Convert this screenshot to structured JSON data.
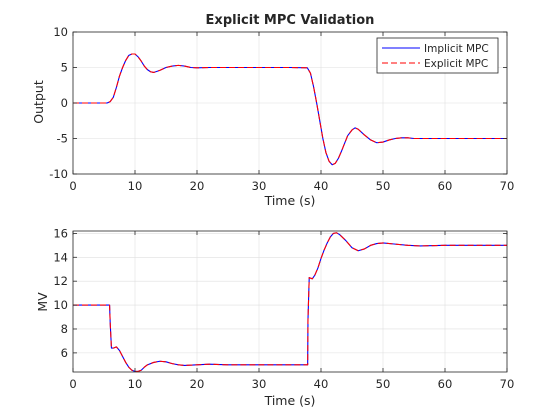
{
  "figure": {
    "background": "#ffffff",
    "axis_color": "#262626",
    "grid_color": "#dfdfdf"
  },
  "chart_data": [
    {
      "type": "line",
      "title": "Explicit MPC Validation",
      "xlabel": "Time (s)",
      "ylabel": "Output",
      "xlim": [
        0,
        70
      ],
      "ylim": [
        -10,
        10
      ],
      "xticks": [
        0,
        10,
        20,
        30,
        40,
        50,
        60,
        70
      ],
      "yticks": [
        -10,
        -5,
        0,
        5,
        10
      ],
      "xtick_labels": [
        "0",
        "10",
        "20",
        "30",
        "40",
        "50",
        "60",
        "70"
      ],
      "ytick_labels": [
        "-10",
        "-5",
        "0",
        "5",
        "10"
      ],
      "grid": true,
      "legend": "top-right",
      "series": [
        {
          "name": "Implicit MPC",
          "color": "#0000ff",
          "style": "solid",
          "x": [
            0,
            5.5,
            6,
            6.5,
            7,
            7.5,
            8,
            8.5,
            9,
            9.5,
            10,
            10.5,
            11,
            11.5,
            12,
            12.5,
            13,
            14,
            15,
            16,
            17,
            18,
            19,
            20,
            22,
            25,
            30,
            35,
            37.8,
            38.3,
            38.8,
            39.3,
            39.8,
            40.3,
            40.8,
            41.3,
            41.8,
            42.3,
            42.8,
            43.3,
            43.8,
            44.3,
            45,
            45.5,
            46,
            47,
            48,
            49,
            50,
            51,
            52,
            53,
            54,
            55,
            57,
            60,
            65,
            70
          ],
          "y": [
            0,
            0,
            0.2,
            0.8,
            2.2,
            3.8,
            5.0,
            6.0,
            6.7,
            6.9,
            6.9,
            6.5,
            5.9,
            5.2,
            4.7,
            4.4,
            4.3,
            4.6,
            5.0,
            5.2,
            5.3,
            5.2,
            5.0,
            4.95,
            5.0,
            5.0,
            5.0,
            5.0,
            4.95,
            4.2,
            2.3,
            0.0,
            -2.5,
            -5.0,
            -7.0,
            -8.2,
            -8.7,
            -8.5,
            -7.8,
            -6.8,
            -5.7,
            -4.6,
            -3.8,
            -3.5,
            -3.7,
            -4.5,
            -5.2,
            -5.6,
            -5.5,
            -5.2,
            -5.0,
            -4.9,
            -4.9,
            -5.0,
            -5.0,
            -5.0,
            -5.0,
            -5.0
          ]
        },
        {
          "name": "Explicit MPC",
          "color": "#ff0000",
          "style": "dashed",
          "x": [
            0,
            5.5,
            6,
            6.5,
            7,
            7.5,
            8,
            8.5,
            9,
            9.5,
            10,
            10.5,
            11,
            11.5,
            12,
            12.5,
            13,
            14,
            15,
            16,
            17,
            18,
            19,
            20,
            22,
            25,
            30,
            35,
            37.8,
            38.3,
            38.8,
            39.3,
            39.8,
            40.3,
            40.8,
            41.3,
            41.8,
            42.3,
            42.8,
            43.3,
            43.8,
            44.3,
            45,
            45.5,
            46,
            47,
            48,
            49,
            50,
            51,
            52,
            53,
            54,
            55,
            57,
            60,
            65,
            70
          ],
          "y": [
            0,
            0,
            0.2,
            0.8,
            2.2,
            3.8,
            5.0,
            6.0,
            6.7,
            6.9,
            6.9,
            6.5,
            5.9,
            5.2,
            4.7,
            4.4,
            4.3,
            4.6,
            5.0,
            5.2,
            5.3,
            5.2,
            5.0,
            4.95,
            5.0,
            5.0,
            5.0,
            5.0,
            4.95,
            4.2,
            2.3,
            0.0,
            -2.5,
            -5.0,
            -7.0,
            -8.2,
            -8.7,
            -8.5,
            -7.8,
            -6.8,
            -5.7,
            -4.6,
            -3.8,
            -3.5,
            -3.7,
            -4.5,
            -5.2,
            -5.6,
            -5.5,
            -5.2,
            -5.0,
            -4.9,
            -4.9,
            -5.0,
            -5.0,
            -5.0,
            -5.0,
            -5.0
          ]
        }
      ]
    },
    {
      "type": "line",
      "title": "",
      "xlabel": "Time (s)",
      "ylabel": "MV",
      "xlim": [
        0,
        70
      ],
      "ylim": [
        4.4,
        16.2
      ],
      "xticks": [
        0,
        10,
        20,
        30,
        40,
        50,
        60,
        70
      ],
      "yticks": [
        6,
        8,
        10,
        12,
        14,
        16
      ],
      "xtick_labels": [
        "0",
        "10",
        "20",
        "30",
        "40",
        "50",
        "60",
        "70"
      ],
      "ytick_labels": [
        "6",
        "8",
        "10",
        "12",
        "14",
        "16"
      ],
      "grid": true,
      "series": [
        {
          "color": "#0000ff",
          "style": "solid",
          "x": [
            0,
            5.9,
            6.0,
            6.2,
            6.5,
            7,
            7.5,
            8,
            8.5,
            9,
            9.5,
            10,
            10.5,
            11,
            11.5,
            12,
            13,
            14,
            15,
            16,
            17,
            18,
            20,
            22,
            25,
            30,
            35,
            37.85,
            37.9,
            38.1,
            38.6,
            39,
            39.5,
            40,
            40.5,
            41,
            41.5,
            42,
            42.5,
            43,
            44,
            45,
            46,
            47,
            48,
            49,
            50,
            52,
            54,
            56,
            60,
            65,
            70
          ],
          "y": [
            10,
            10,
            8.5,
            6.4,
            6.4,
            6.5,
            6.2,
            5.7,
            5.2,
            4.8,
            4.55,
            4.45,
            4.45,
            4.55,
            4.8,
            5.0,
            5.2,
            5.3,
            5.25,
            5.1,
            5.0,
            4.95,
            5.0,
            5.05,
            5.0,
            5.0,
            5.0,
            5.0,
            8.8,
            12.3,
            12.2,
            12.5,
            13.1,
            13.9,
            14.6,
            15.2,
            15.7,
            16.0,
            16.05,
            15.9,
            15.4,
            14.8,
            14.55,
            14.7,
            15.0,
            15.15,
            15.2,
            15.1,
            15.0,
            14.95,
            15.0,
            15.0,
            15.0
          ]
        },
        {
          "color": "#ff0000",
          "style": "dashed",
          "x": [
            0,
            5.9,
            6.0,
            6.2,
            6.5,
            7,
            7.5,
            8,
            8.5,
            9,
            9.5,
            10,
            10.5,
            11,
            11.5,
            12,
            13,
            14,
            15,
            16,
            17,
            18,
            20,
            22,
            25,
            30,
            35,
            37.85,
            37.9,
            38.1,
            38.6,
            39,
            39.5,
            40,
            40.5,
            41,
            41.5,
            42,
            42.5,
            43,
            44,
            45,
            46,
            47,
            48,
            49,
            50,
            52,
            54,
            56,
            60,
            65,
            70
          ],
          "y": [
            10,
            10,
            8.5,
            6.4,
            6.4,
            6.5,
            6.2,
            5.7,
            5.2,
            4.8,
            4.55,
            4.45,
            4.45,
            4.55,
            4.8,
            5.0,
            5.2,
            5.3,
            5.25,
            5.1,
            5.0,
            4.95,
            5.0,
            5.05,
            5.0,
            5.0,
            5.0,
            5.0,
            8.8,
            12.3,
            12.2,
            12.5,
            13.1,
            13.9,
            14.6,
            15.2,
            15.7,
            16.0,
            16.05,
            15.9,
            15.4,
            14.8,
            14.55,
            14.7,
            15.0,
            15.15,
            15.2,
            15.1,
            15.0,
            14.95,
            15.0,
            15.0,
            15.0
          ]
        }
      ]
    }
  ]
}
